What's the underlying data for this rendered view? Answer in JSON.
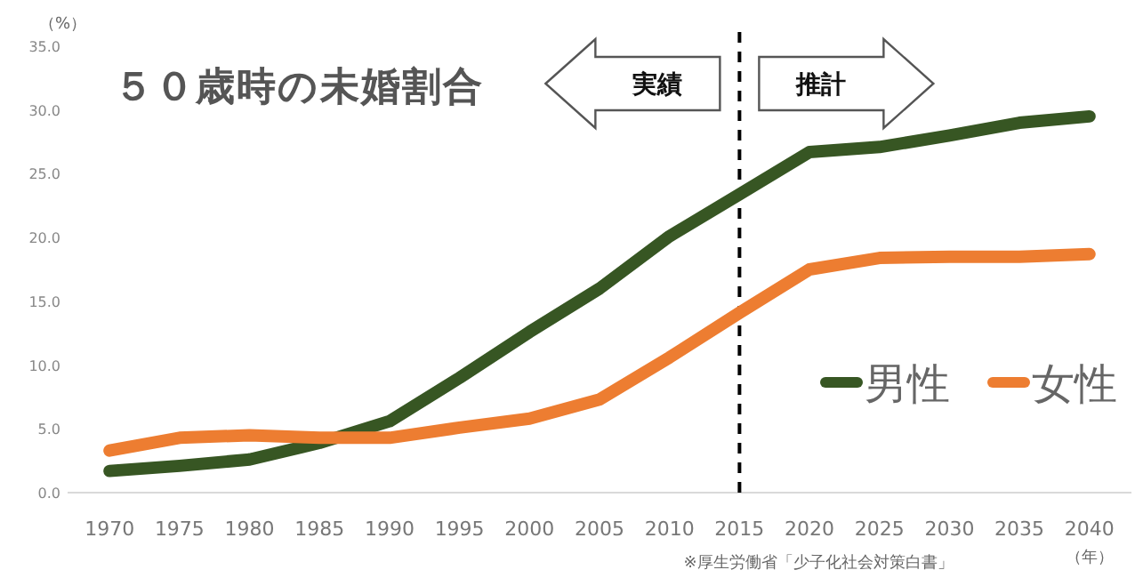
{
  "chart_data": {
    "type": "line",
    "title": "５０歳時の未婚割合",
    "ylabel": "（%）",
    "xlabel": "（年）",
    "x": [
      1970,
      1975,
      1980,
      1985,
      1990,
      1995,
      2000,
      2005,
      2010,
      2015,
      2020,
      2025,
      2030,
      2035,
      2040
    ],
    "xlim": [
      1967,
      2043
    ],
    "xticks": [
      1970,
      1975,
      1980,
      1985,
      1990,
      1995,
      2000,
      2005,
      2010,
      2015,
      2020,
      2025,
      2030,
      2035,
      2040
    ],
    "ylim": [
      0,
      35
    ],
    "yticks": [
      {
        "value": 0,
        "label": "0.0"
      },
      {
        "value": 5,
        "label": "5.0"
      },
      {
        "value": 10,
        "label": "10.0"
      },
      {
        "value": 15,
        "label": "15.0"
      },
      {
        "value": 20,
        "label": "20.0"
      },
      {
        "value": 25,
        "label": "25.0"
      },
      {
        "value": 30,
        "label": "30.0"
      },
      {
        "value": 35,
        "label": "35.0"
      }
    ],
    "series": [
      {
        "name": "男性",
        "color": "#375623",
        "values": [
          1.7,
          2.1,
          2.6,
          3.9,
          5.6,
          9.0,
          12.6,
          16.0,
          20.1,
          23.4,
          26.7,
          27.1,
          28.0,
          29.0,
          29.5
        ]
      },
      {
        "name": "女性",
        "color": "#ed7d31",
        "values": [
          3.3,
          4.3,
          4.5,
          4.3,
          4.3,
          5.1,
          5.8,
          7.3,
          10.6,
          14.1,
          17.5,
          18.4,
          18.5,
          18.5,
          18.7
        ]
      }
    ],
    "ref_lines": [
      {
        "axis": "x",
        "value": 2015,
        "color": "#000000",
        "line_style": "dashed"
      }
    ],
    "annotations": [
      "実績",
      "推計",
      "※厚生労働省「少子化社会対策白書」"
    ],
    "grid": false,
    "legend": "right",
    "marker": "none",
    "line_style": "solid"
  }
}
